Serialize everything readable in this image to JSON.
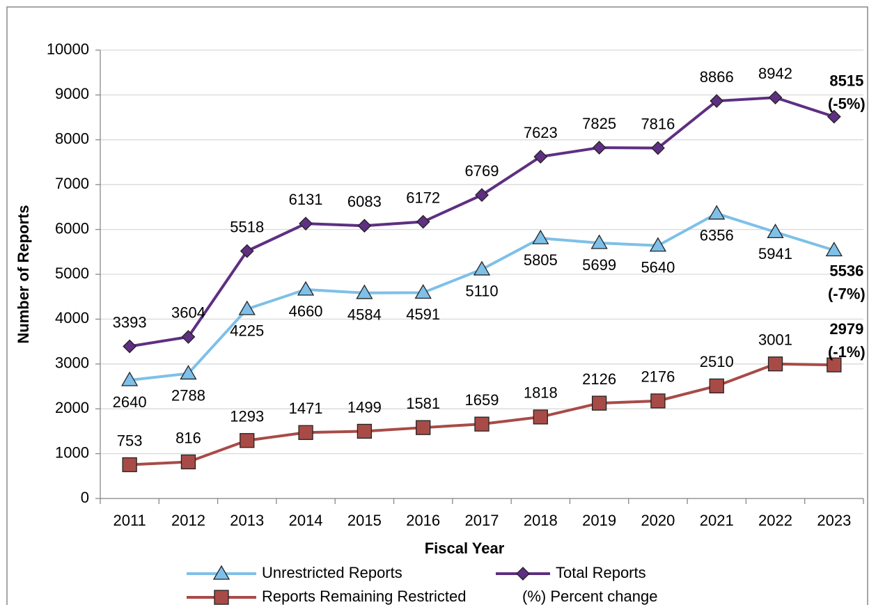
{
  "chart_data": {
    "type": "line",
    "xlabel": "Fiscal Year",
    "ylabel": "Number of Reports",
    "categories": [
      "2011",
      "2012",
      "2013",
      "2014",
      "2015",
      "2016",
      "2017",
      "2018",
      "2019",
      "2020",
      "2021",
      "2022",
      "2023"
    ],
    "series": [
      {
        "name": "Unrestricted Reports",
        "color": "#7ec0e8",
        "marker": "triangle",
        "values": [
          2640,
          2788,
          4225,
          4660,
          4584,
          4591,
          5110,
          5805,
          5699,
          5640,
          6356,
          5941,
          5536
        ],
        "value_labels": [
          "2640",
          "2788",
          "4225",
          "4660",
          "4584",
          "4591",
          "5110",
          "5805",
          "5699",
          "5640",
          "6356",
          "5941",
          "5536 (-7%)"
        ]
      },
      {
        "name": "Total Reports",
        "color": "#5e2f82",
        "marker": "diamond",
        "values": [
          3393,
          3604,
          5518,
          6131,
          6083,
          6172,
          6769,
          7623,
          7825,
          7816,
          8866,
          8942,
          8515
        ],
        "value_labels": [
          "3393",
          "3604",
          "5518",
          "6131",
          "6083",
          "6172",
          "6769",
          "7623",
          "7825",
          "7816",
          "8866",
          "8942",
          "8515 (-5%)"
        ]
      },
      {
        "name": "Reports Remaining Restricted",
        "color": "#a84b47",
        "marker": "square",
        "values": [
          753,
          816,
          1293,
          1471,
          1499,
          1581,
          1659,
          1818,
          2126,
          2176,
          2510,
          3001,
          2979
        ],
        "value_labels": [
          "753",
          "816",
          "1293",
          "1471",
          "1499",
          "1581",
          "1659",
          "1818",
          "2126",
          "2176",
          "2510",
          "3001",
          "2979 (-1%)"
        ]
      }
    ],
    "legend_note": "(%) Percent change",
    "ylim": [
      0,
      10000
    ],
    "yticks": [
      0,
      1000,
      2000,
      3000,
      4000,
      5000,
      6000,
      7000,
      8000,
      9000,
      10000
    ],
    "grid": true
  }
}
